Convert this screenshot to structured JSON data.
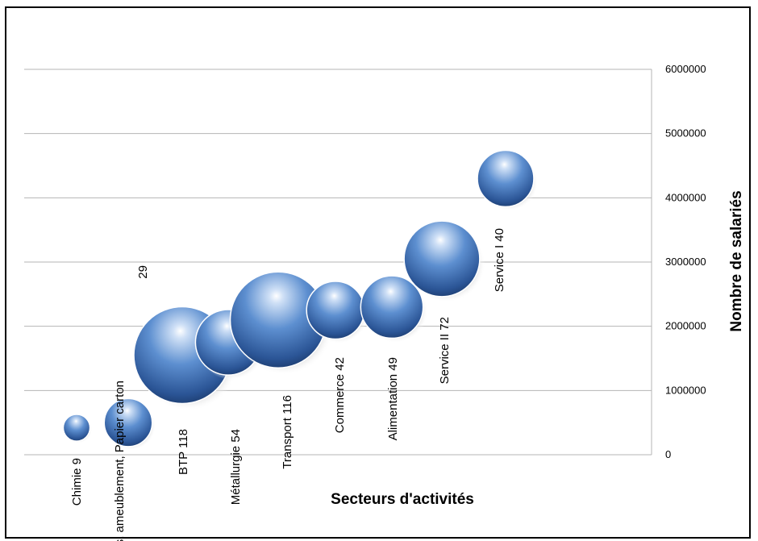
{
  "chart_data": {
    "type": "bubble",
    "xlabel": "Secteurs d'activités",
    "ylabel": "Nombre de salariés",
    "ylim": [
      0,
      6000000
    ],
    "yticks": [
      "0",
      "1000000",
      "2000000",
      "3000000",
      "4000000",
      "5000000",
      "6000000"
    ],
    "yaxis_position": "right",
    "grid": true,
    "color": "#4a7cc0",
    "points": [
      {
        "label": "Chimie 9",
        "size": 9,
        "y": 420000
      },
      {
        "label": "Bois, ameublement, Papier carton",
        "label2": "29",
        "size": 29,
        "y": 500000
      },
      {
        "label": "BTP 118",
        "size": 118,
        "y": 1550000
      },
      {
        "label": "Métallurgie 54",
        "size": 54,
        "y": 1750000
      },
      {
        "label": "Transport 116",
        "size": 116,
        "y": 2100000
      },
      {
        "label": "Commerce 42",
        "size": 42,
        "y": 2250000
      },
      {
        "label": "Alimentation 49",
        "size": 49,
        "y": 2300000
      },
      {
        "label": "Service II 72",
        "size": 72,
        "y": 3050000
      },
      {
        "label": "Service I 40",
        "size": 40,
        "y": 4300000
      }
    ]
  }
}
